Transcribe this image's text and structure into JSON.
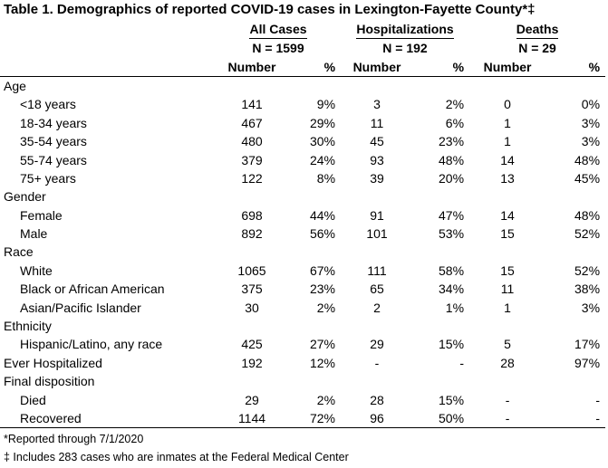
{
  "title": "Table 1. Demographics of reported COVID-19 cases in Lexington-Fayette County*‡",
  "groups": [
    {
      "label": "All Cases",
      "n": "N = 1599"
    },
    {
      "label": "Hospitalizations",
      "n": "N = 192"
    },
    {
      "label": "Deaths",
      "n": "N = 29"
    }
  ],
  "subheaders": {
    "number": "Number",
    "pct": "%"
  },
  "sections": [
    {
      "label": "Age",
      "rows": [
        {
          "label": "<18 years",
          "values": [
            "141",
            "9%",
            "3",
            "2%",
            "0",
            "0%"
          ]
        },
        {
          "label": "18-34 years",
          "values": [
            "467",
            "29%",
            "11",
            "6%",
            "1",
            "3%"
          ]
        },
        {
          "label": "35-54 years",
          "values": [
            "480",
            "30%",
            "45",
            "23%",
            "1",
            "3%"
          ]
        },
        {
          "label": "55-74 years",
          "values": [
            "379",
            "24%",
            "93",
            "48%",
            "14",
            "48%"
          ]
        },
        {
          "label": "75+ years",
          "values": [
            "122",
            "8%",
            "39",
            "20%",
            "13",
            "45%"
          ]
        }
      ]
    },
    {
      "label": "Gender",
      "rows": [
        {
          "label": "Female",
          "values": [
            "698",
            "44%",
            "91",
            "47%",
            "14",
            "48%"
          ]
        },
        {
          "label": "Male",
          "values": [
            "892",
            "56%",
            "101",
            "53%",
            "15",
            "52%"
          ]
        }
      ]
    },
    {
      "label": "Race",
      "rows": [
        {
          "label": "White",
          "values": [
            "1065",
            "67%",
            "111",
            "58%",
            "15",
            "52%"
          ]
        },
        {
          "label": "Black or African American",
          "values": [
            "375",
            "23%",
            "65",
            "34%",
            "11",
            "38%"
          ]
        },
        {
          "label": "Asian/Pacific Islander",
          "values": [
            "30",
            "2%",
            "2",
            "1%",
            "1",
            "3%"
          ]
        }
      ]
    },
    {
      "label": "Ethnicity",
      "rows": [
        {
          "label": "Hispanic/Latino, any race",
          "values": [
            "425",
            "27%",
            "29",
            "15%",
            "5",
            "17%"
          ]
        }
      ]
    },
    {
      "label": "Ever Hospitalized",
      "values": [
        "192",
        "12%",
        "-",
        "-",
        "28",
        "97%"
      ]
    },
    {
      "label": "Final disposition",
      "rows": [
        {
          "label": "Died",
          "values": [
            "29",
            "2%",
            "28",
            "15%",
            "-",
            "-"
          ]
        },
        {
          "label": "Recovered",
          "values": [
            "1144",
            "72%",
            "96",
            "50%",
            "-",
            "-"
          ]
        }
      ]
    }
  ],
  "footnotes": [
    "*Reported through 7/1/2020",
    "‡ Includes 283 cases who are inmates at the Federal Medical Center"
  ]
}
